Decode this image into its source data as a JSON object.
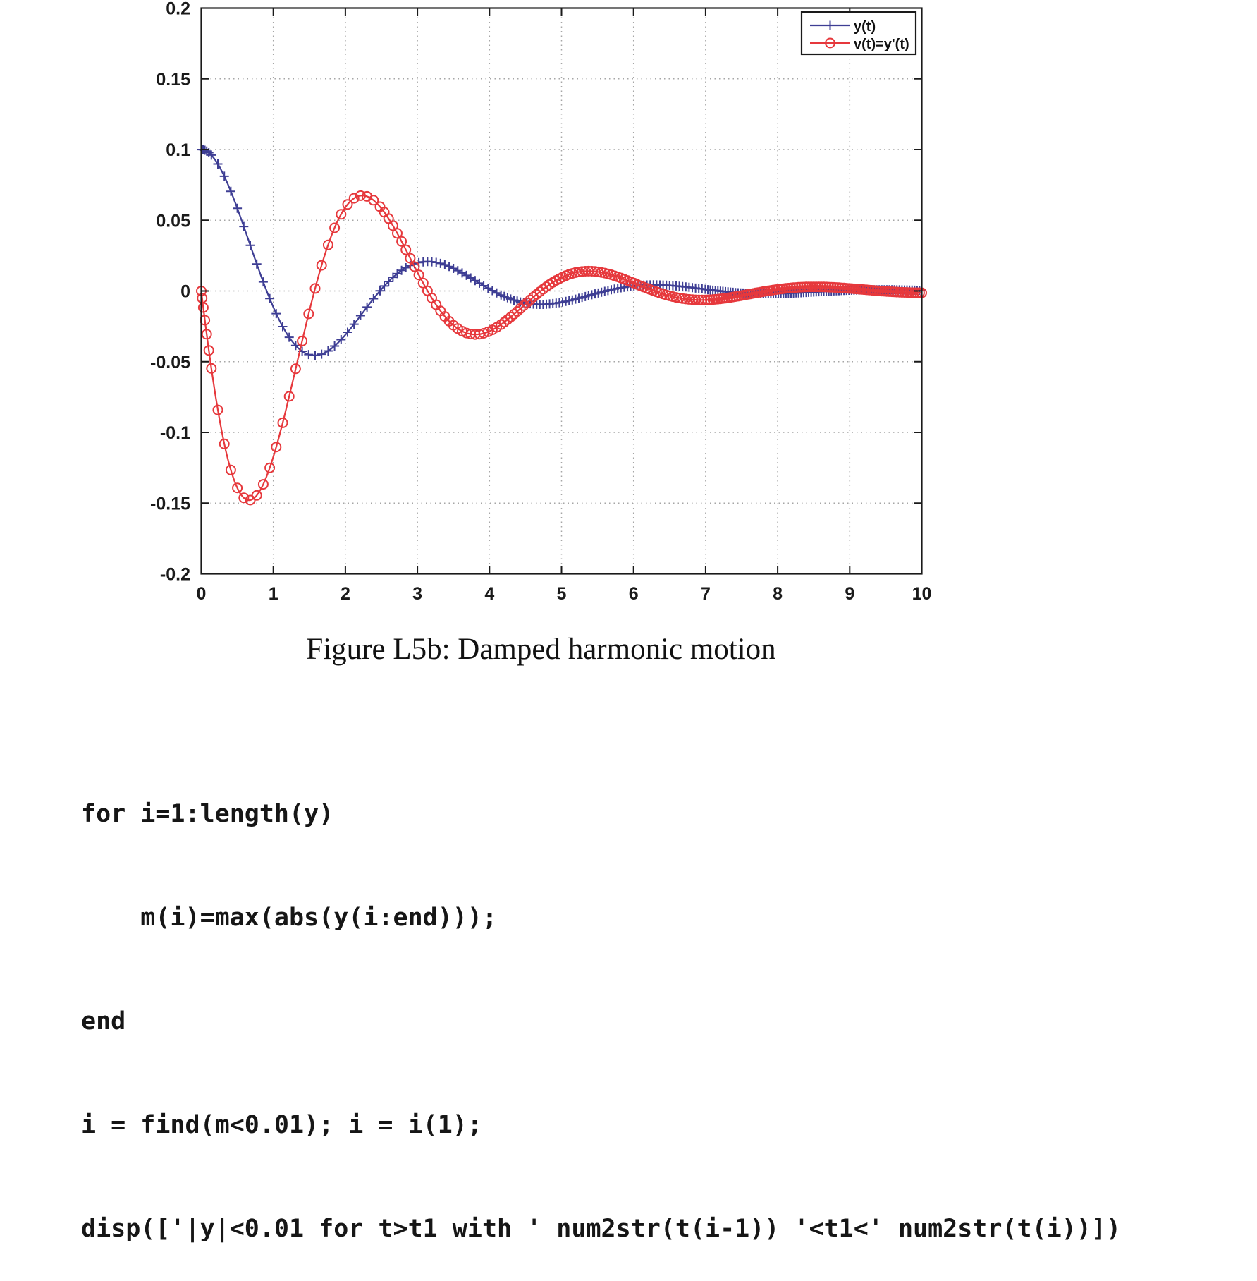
{
  "figure": {
    "caption": "Figure L5b: Damped harmonic motion"
  },
  "chart_data": {
    "type": "line",
    "title": "",
    "xlabel": "",
    "ylabel": "",
    "xlim": [
      0,
      10
    ],
    "ylim": [
      -0.2,
      0.2
    ],
    "xticks": [
      0,
      1,
      2,
      3,
      4,
      5,
      6,
      7,
      8,
      9,
      10
    ],
    "xtick_labels": [
      "0",
      "1",
      "2",
      "3",
      "4",
      "5",
      "6",
      "7",
      "8",
      "9",
      "10"
    ],
    "yticks": [
      0.2,
      0.15,
      0.1,
      0.05,
      0,
      -0.05,
      -0.1,
      -0.15,
      -0.2
    ],
    "ytick_labels": [
      "0.2",
      "0.15",
      "0.1",
      "0.05",
      "0",
      "-0.05",
      "-0.1",
      "-0.15",
      "-0.2"
    ],
    "grid": "dotted",
    "colors": {
      "y_series": "#3e3e94",
      "v_series": "#e6383c",
      "frame": "#1a1a1a",
      "grid": "#a6a6a6"
    },
    "legend": {
      "position": "top-right",
      "entries": [
        {
          "label": "y(t)",
          "series": "y"
        },
        {
          "label": "v(t)=y'(t)",
          "series": "v"
        }
      ]
    },
    "series": [
      {
        "id": "y",
        "name": "y(t)",
        "color": "#3e3e94",
        "marker": "plus",
        "line": "solid",
        "model": "y(t) = exp(-0.5*t)*(0.1*cos(2*t) + 0.025*sin(2*t))",
        "params": {
          "y0": 0.1,
          "dy0": 0,
          "gamma": 0.5,
          "omega": 2
        },
        "key_points": [
          {
            "t": 0,
            "value": 0.1
          },
          {
            "t": 0.91,
            "value": 0
          },
          {
            "t": 1.57,
            "value": -0.046
          },
          {
            "t": 3.14,
            "value": 0.021
          },
          {
            "t": 4.71,
            "value": -0.0095
          },
          {
            "t": 6.28,
            "value": 0.0043
          },
          {
            "t": 10,
            "value": 0.0004
          }
        ]
      },
      {
        "id": "v",
        "name": "v(t)=y'(t)",
        "color": "#e6383c",
        "marker": "circle",
        "line": "solid",
        "model": "v(t) = -0.2125*exp(-0.5*t)*sin(2*t)",
        "params": {
          "amp": -0.2125,
          "gamma": 0.5,
          "omega": 2
        },
        "key_points": [
          {
            "t": 0,
            "value": 0
          },
          {
            "t": 0.66,
            "value": -0.148
          },
          {
            "t": 1.57,
            "value": 0
          },
          {
            "t": 2.23,
            "value": 0.067
          },
          {
            "t": 3.81,
            "value": -0.031
          },
          {
            "t": 5.38,
            "value": 0.014
          },
          {
            "t": 6.95,
            "value": -0.0063
          },
          {
            "t": 10,
            "value": -0.0013
          }
        ]
      }
    ],
    "sampling": {
      "t_start": 0,
      "t_end": 10,
      "cluster": [
        0,
        0.012,
        0.028,
        0.05,
        0.075,
        0.105,
        0.14
      ],
      "steps": [
        {
          "until": 2.5,
          "dt": 0.09
        },
        {
          "until": 4.2,
          "dt": 0.06
        },
        {
          "until": 7.0,
          "dt": 0.045
        },
        {
          "until": 10.0,
          "dt": 0.035
        }
      ]
    }
  },
  "code": {
    "lines": [
      "for i=1:length(y)",
      "    m(i)=max(abs(y(i:end)));",
      "end",
      "i = find(m<0.01); i = i(1);",
      "disp(['|y|<0.01 for t>t1 with ' num2str(t(i-1)) '<t1<' num2str(t(i))])"
    ]
  }
}
